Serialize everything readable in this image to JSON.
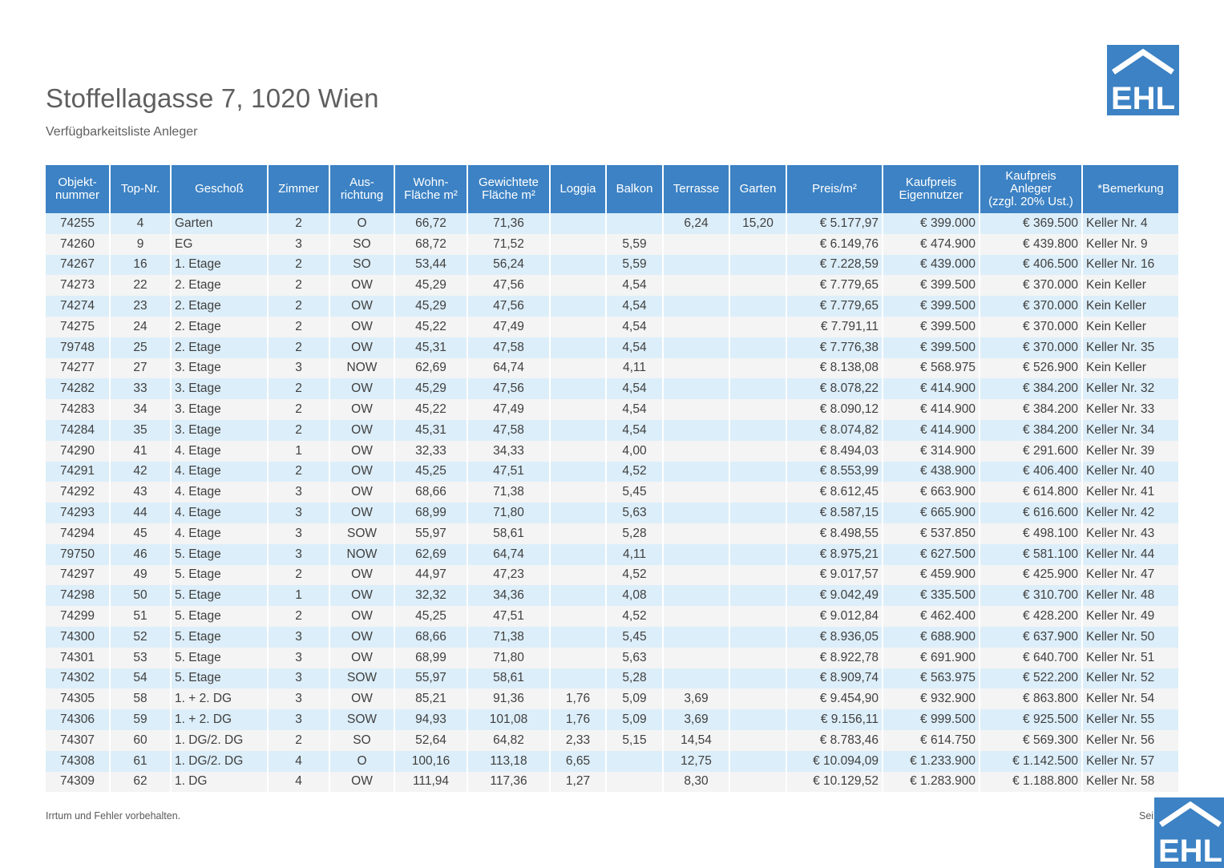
{
  "header": {
    "title": "Stoffellagasse 7, 1020 Wien",
    "subtitle": "Verfügbarkeitsliste Anleger",
    "logo_text": "EHL"
  },
  "colors": {
    "brand_blue": "#3c82c4",
    "row_odd": "#dceef9",
    "row_even": "#f4f4f4"
  },
  "table": {
    "columns": [
      {
        "label": "Objekt-\nnummer",
        "align": "center"
      },
      {
        "label": "Top-Nr.",
        "align": "center"
      },
      {
        "label": "Geschoß",
        "align": "left"
      },
      {
        "label": "Zimmer",
        "align": "center"
      },
      {
        "label": "Aus-\nrichtung",
        "align": "center"
      },
      {
        "label": "Wohn-\nFläche m²",
        "align": "center"
      },
      {
        "label": "Gewichtete\nFläche m²",
        "align": "center"
      },
      {
        "label": "Loggia",
        "align": "center"
      },
      {
        "label": "Balkon",
        "align": "center"
      },
      {
        "label": "Terrasse",
        "align": "center"
      },
      {
        "label": "Garten",
        "align": "center"
      },
      {
        "label": "Preis/m²",
        "align": "right"
      },
      {
        "label": "Kaufpreis\nEigennutzer",
        "align": "right"
      },
      {
        "label": "Kaufpreis\nAnleger\n(zzgl. 20% Ust.)",
        "align": "right"
      },
      {
        "label": "*Bemerkung",
        "align": "left"
      }
    ],
    "rows": [
      [
        "74255",
        "4",
        "Garten",
        "2",
        "O",
        "66,72",
        "71,36",
        "",
        "",
        "6,24",
        "15,20",
        "€ 5.177,97",
        "€ 399.000",
        "€ 369.500",
        "Keller Nr. 4"
      ],
      [
        "74260",
        "9",
        "EG",
        "3",
        "SO",
        "68,72",
        "71,52",
        "",
        "5,59",
        "",
        "",
        "€ 6.149,76",
        "€ 474.900",
        "€ 439.800",
        "Keller Nr. 9"
      ],
      [
        "74267",
        "16",
        "1. Etage",
        "2",
        "SO",
        "53,44",
        "56,24",
        "",
        "5,59",
        "",
        "",
        "€ 7.228,59",
        "€ 439.000",
        "€ 406.500",
        "Keller Nr. 16"
      ],
      [
        "74273",
        "22",
        "2. Etage",
        "2",
        "OW",
        "45,29",
        "47,56",
        "",
        "4,54",
        "",
        "",
        "€ 7.779,65",
        "€ 399.500",
        "€ 370.000",
        "Kein Keller"
      ],
      [
        "74274",
        "23",
        "2. Etage",
        "2",
        "OW",
        "45,29",
        "47,56",
        "",
        "4,54",
        "",
        "",
        "€ 7.779,65",
        "€ 399.500",
        "€ 370.000",
        "Kein Keller"
      ],
      [
        "74275",
        "24",
        "2. Etage",
        "2",
        "OW",
        "45,22",
        "47,49",
        "",
        "4,54",
        "",
        "",
        "€ 7.791,11",
        "€ 399.500",
        "€ 370.000",
        "Kein Keller"
      ],
      [
        "79748",
        "25",
        "2. Etage",
        "2",
        "OW",
        "45,31",
        "47,58",
        "",
        "4,54",
        "",
        "",
        "€ 7.776,38",
        "€ 399.500",
        "€ 370.000",
        "Keller Nr. 35"
      ],
      [
        "74277",
        "27",
        "3. Etage",
        "3",
        "NOW",
        "62,69",
        "64,74",
        "",
        "4,11",
        "",
        "",
        "€ 8.138,08",
        "€ 568.975",
        "€ 526.900",
        "Kein Keller"
      ],
      [
        "74282",
        "33",
        "3. Etage",
        "2",
        "OW",
        "45,29",
        "47,56",
        "",
        "4,54",
        "",
        "",
        "€ 8.078,22",
        "€ 414.900",
        "€ 384.200",
        "Keller Nr. 32"
      ],
      [
        "74283",
        "34",
        "3. Etage",
        "2",
        "OW",
        "45,22",
        "47,49",
        "",
        "4,54",
        "",
        "",
        "€ 8.090,12",
        "€ 414.900",
        "€ 384.200",
        "Keller Nr. 33"
      ],
      [
        "74284",
        "35",
        "3. Etage",
        "2",
        "OW",
        "45,31",
        "47,58",
        "",
        "4,54",
        "",
        "",
        "€ 8.074,82",
        "€ 414.900",
        "€ 384.200",
        "Keller Nr. 34"
      ],
      [
        "74290",
        "41",
        "4. Etage",
        "1",
        "OW",
        "32,33",
        "34,33",
        "",
        "4,00",
        "",
        "",
        "€ 8.494,03",
        "€ 314.900",
        "€ 291.600",
        "Keller Nr. 39"
      ],
      [
        "74291",
        "42",
        "4. Etage",
        "2",
        "OW",
        "45,25",
        "47,51",
        "",
        "4,52",
        "",
        "",
        "€ 8.553,99",
        "€ 438.900",
        "€ 406.400",
        "Keller Nr. 40"
      ],
      [
        "74292",
        "43",
        "4. Etage",
        "3",
        "OW",
        "68,66",
        "71,38",
        "",
        "5,45",
        "",
        "",
        "€ 8.612,45",
        "€ 663.900",
        "€ 614.800",
        "Keller Nr. 41"
      ],
      [
        "74293",
        "44",
        "4. Etage",
        "3",
        "OW",
        "68,99",
        "71,80",
        "",
        "5,63",
        "",
        "",
        "€ 8.587,15",
        "€ 665.900",
        "€ 616.600",
        "Keller Nr. 42"
      ],
      [
        "74294",
        "45",
        "4. Etage",
        "3",
        "SOW",
        "55,97",
        "58,61",
        "",
        "5,28",
        "",
        "",
        "€ 8.498,55",
        "€ 537.850",
        "€ 498.100",
        "Keller Nr. 43"
      ],
      [
        "79750",
        "46",
        "5. Etage",
        "3",
        "NOW",
        "62,69",
        "64,74",
        "",
        "4,11",
        "",
        "",
        "€ 8.975,21",
        "€ 627.500",
        "€ 581.100",
        "Keller Nr. 44"
      ],
      [
        "74297",
        "49",
        "5. Etage",
        "2",
        "OW",
        "44,97",
        "47,23",
        "",
        "4,52",
        "",
        "",
        "€ 9.017,57",
        "€ 459.900",
        "€ 425.900",
        "Keller Nr. 47"
      ],
      [
        "74298",
        "50",
        "5. Etage",
        "1",
        "OW",
        "32,32",
        "34,36",
        "",
        "4,08",
        "",
        "",
        "€ 9.042,49",
        "€ 335.500",
        "€ 310.700",
        "Keller Nr. 48"
      ],
      [
        "74299",
        "51",
        "5. Etage",
        "2",
        "OW",
        "45,25",
        "47,51",
        "",
        "4,52",
        "",
        "",
        "€ 9.012,84",
        "€ 462.400",
        "€ 428.200",
        "Keller Nr. 49"
      ],
      [
        "74300",
        "52",
        "5. Etage",
        "3",
        "OW",
        "68,66",
        "71,38",
        "",
        "5,45",
        "",
        "",
        "€ 8.936,05",
        "€ 688.900",
        "€ 637.900",
        "Keller Nr. 50"
      ],
      [
        "74301",
        "53",
        "5. Etage",
        "3",
        "OW",
        "68,99",
        "71,80",
        "",
        "5,63",
        "",
        "",
        "€ 8.922,78",
        "€ 691.900",
        "€ 640.700",
        "Keller Nr. 51"
      ],
      [
        "74302",
        "54",
        "5. Etage",
        "3",
        "SOW",
        "55,97",
        "58,61",
        "",
        "5,28",
        "",
        "",
        "€ 8.909,74",
        "€ 563.975",
        "€ 522.200",
        "Keller Nr. 52"
      ],
      [
        "74305",
        "58",
        "1. + 2. DG",
        "3",
        "OW",
        "85,21",
        "91,36",
        "1,76",
        "5,09",
        "3,69",
        "",
        "€ 9.454,90",
        "€ 932.900",
        "€ 863.800",
        "Keller Nr. 54"
      ],
      [
        "74306",
        "59",
        "1. + 2. DG",
        "3",
        "SOW",
        "94,93",
        "101,08",
        "1,76",
        "5,09",
        "3,69",
        "",
        "€ 9.156,11",
        "€ 999.500",
        "€ 925.500",
        "Keller Nr. 55"
      ],
      [
        "74307",
        "60",
        "1. DG/2. DG",
        "2",
        "SO",
        "52,64",
        "64,82",
        "2,33",
        "5,15",
        "14,54",
        "",
        "€ 8.783,46",
        "€ 614.750",
        "€ 569.300",
        "Keller Nr. 56"
      ],
      [
        "74308",
        "61",
        "1. DG/2. DG",
        "4",
        "O",
        "100,16",
        "113,18",
        "6,65",
        "",
        "12,75",
        "",
        "€ 10.094,09",
        "€ 1.233.900",
        "€ 1.142.500",
        "Keller Nr. 57"
      ],
      [
        "74309",
        "62",
        "1. DG",
        "4",
        "OW",
        "111,94",
        "117,36",
        "1,27",
        "",
        "8,30",
        "",
        "€ 10.129,52",
        "€ 1.283.900",
        "€ 1.188.800",
        "Keller Nr. 58"
      ]
    ]
  },
  "footer": {
    "disclaimer": "Irrtum und Fehler vorbehalten.",
    "page_label": "Sei"
  }
}
